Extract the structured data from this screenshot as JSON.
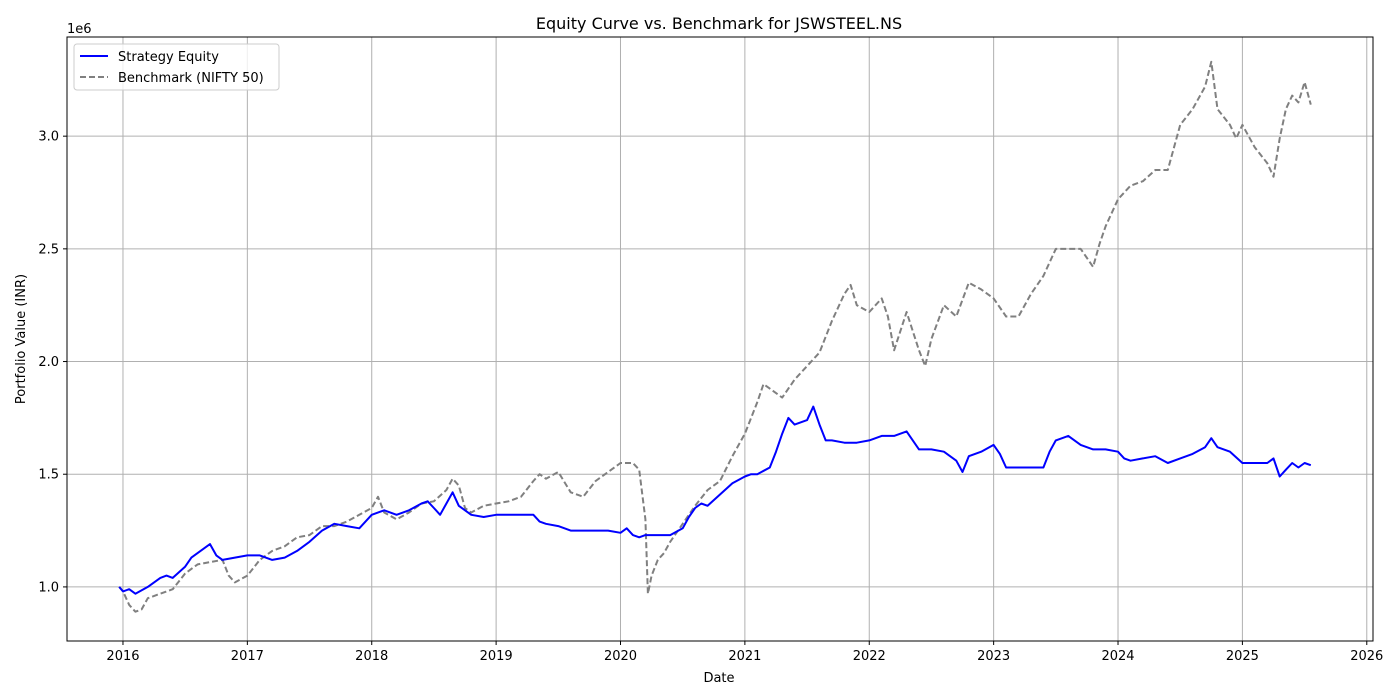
{
  "chart_data": {
    "type": "line",
    "title": "Equity Curve vs. Benchmark for JSWSTEEL.NS",
    "xlabel": "Date",
    "ylabel": "Portfolio Value (INR)",
    "y_offset_text": "1e6",
    "xlim": [
      2015.55,
      2026.05
    ],
    "ylim": [
      0.76,
      3.44
    ],
    "x_ticks": [
      2016,
      2017,
      2018,
      2019,
      2020,
      2021,
      2022,
      2023,
      2024,
      2025,
      2026
    ],
    "x_tick_labels": [
      "2016",
      "2017",
      "2018",
      "2019",
      "2020",
      "2021",
      "2022",
      "2023",
      "2024",
      "2025",
      "2026"
    ],
    "y_ticks": [
      1.0,
      1.5,
      2.0,
      2.5,
      3.0
    ],
    "y_tick_labels": [
      "1.0",
      "1.5",
      "2.0",
      "2.5",
      "3.0"
    ],
    "grid": true,
    "legend_position": "top-left",
    "series": [
      {
        "name": "Strategy Equity",
        "color": "#0000ff",
        "style": "solid",
        "x": [
          2015.97,
          2016.0,
          2016.05,
          2016.1,
          2016.2,
          2016.3,
          2016.35,
          2016.4,
          2016.5,
          2016.55,
          2016.6,
          2016.7,
          2016.75,
          2016.8,
          2016.9,
          2017.0,
          2017.1,
          2017.2,
          2017.3,
          2017.4,
          2017.5,
          2017.6,
          2017.7,
          2017.8,
          2017.9,
          2018.0,
          2018.1,
          2018.2,
          2018.3,
          2018.4,
          2018.45,
          2018.5,
          2018.55,
          2018.6,
          2018.65,
          2018.7,
          2018.8,
          2018.9,
          2019.0,
          2019.1,
          2019.2,
          2019.3,
          2019.35,
          2019.4,
          2019.5,
          2019.6,
          2019.7,
          2019.8,
          2019.9,
          2020.0,
          2020.05,
          2020.1,
          2020.15,
          2020.2,
          2020.3,
          2020.4,
          2020.5,
          2020.55,
          2020.6,
          2020.65,
          2020.7,
          2020.8,
          2020.9,
          2021.0,
          2021.05,
          2021.1,
          2021.2,
          2021.25,
          2021.3,
          2021.35,
          2021.4,
          2021.5,
          2021.55,
          2021.6,
          2021.65,
          2021.7,
          2021.8,
          2021.9,
          2022.0,
          2022.1,
          2022.2,
          2022.3,
          2022.35,
          2022.4,
          2022.5,
          2022.6,
          2022.7,
          2022.75,
          2022.8,
          2022.85,
          2022.9,
          2023.0,
          2023.05,
          2023.1,
          2023.2,
          2023.3,
          2023.4,
          2023.45,
          2023.5,
          2023.6,
          2023.7,
          2023.8,
          2023.9,
          2024.0,
          2024.05,
          2024.1,
          2024.2,
          2024.3,
          2024.4,
          2024.5,
          2024.6,
          2024.7,
          2024.75,
          2024.8,
          2024.9,
          2025.0,
          2025.1,
          2025.2,
          2025.25,
          2025.3,
          2025.35,
          2025.4,
          2025.45,
          2025.5,
          2025.55
        ],
        "y": [
          1.0,
          0.98,
          0.99,
          0.97,
          1.0,
          1.04,
          1.05,
          1.04,
          1.09,
          1.13,
          1.15,
          1.19,
          1.14,
          1.12,
          1.13,
          1.14,
          1.14,
          1.12,
          1.13,
          1.16,
          1.2,
          1.25,
          1.28,
          1.27,
          1.26,
          1.32,
          1.34,
          1.32,
          1.34,
          1.37,
          1.38,
          1.35,
          1.32,
          1.37,
          1.42,
          1.36,
          1.32,
          1.31,
          1.32,
          1.32,
          1.32,
          1.32,
          1.29,
          1.28,
          1.27,
          1.25,
          1.25,
          1.25,
          1.25,
          1.24,
          1.26,
          1.23,
          1.22,
          1.23,
          1.23,
          1.23,
          1.26,
          1.31,
          1.35,
          1.37,
          1.36,
          1.41,
          1.46,
          1.49,
          1.5,
          1.5,
          1.53,
          1.6,
          1.68,
          1.75,
          1.72,
          1.74,
          1.8,
          1.72,
          1.65,
          1.65,
          1.64,
          1.64,
          1.65,
          1.67,
          1.67,
          1.69,
          1.65,
          1.61,
          1.61,
          1.6,
          1.56,
          1.51,
          1.58,
          1.59,
          1.6,
          1.63,
          1.59,
          1.53,
          1.53,
          1.53,
          1.53,
          1.6,
          1.65,
          1.67,
          1.63,
          1.61,
          1.61,
          1.6,
          1.57,
          1.56,
          1.57,
          1.58,
          1.55,
          1.57,
          1.59,
          1.62,
          1.66,
          1.62,
          1.6,
          1.55,
          1.55,
          1.55,
          1.57,
          1.49,
          1.52,
          1.55,
          1.53,
          1.55,
          1.54
        ]
      },
      {
        "name": "Benchmark (NIFTY 50)",
        "color": "#808080",
        "style": "dashed",
        "x": [
          2015.97,
          2016.0,
          2016.05,
          2016.1,
          2016.15,
          2016.2,
          2016.3,
          2016.4,
          2016.5,
          2016.6,
          2016.7,
          2016.8,
          2016.85,
          2016.9,
          2017.0,
          2017.1,
          2017.2,
          2017.3,
          2017.4,
          2017.5,
          2017.6,
          2017.7,
          2017.8,
          2017.9,
          2018.0,
          2018.05,
          2018.1,
          2018.2,
          2018.3,
          2018.4,
          2018.5,
          2018.6,
          2018.65,
          2018.7,
          2018.75,
          2018.8,
          2018.9,
          2019.0,
          2019.1,
          2019.2,
          2019.3,
          2019.35,
          2019.4,
          2019.5,
          2019.6,
          2019.7,
          2019.8,
          2019.9,
          2020.0,
          2020.1,
          2020.15,
          2020.2,
          2020.22,
          2020.25,
          2020.3,
          2020.35,
          2020.4,
          2020.5,
          2020.6,
          2020.7,
          2020.8,
          2020.9,
          2021.0,
          2021.1,
          2021.15,
          2021.2,
          2021.3,
          2021.4,
          2021.5,
          2021.6,
          2021.7,
          2021.8,
          2021.85,
          2021.9,
          2022.0,
          2022.1,
          2022.15,
          2022.2,
          2022.3,
          2022.4,
          2022.45,
          2022.5,
          2022.6,
          2022.7,
          2022.8,
          2022.9,
          2023.0,
          2023.1,
          2023.2,
          2023.3,
          2023.4,
          2023.5,
          2023.6,
          2023.7,
          2023.8,
          2023.85,
          2023.9,
          2024.0,
          2024.1,
          2024.2,
          2024.3,
          2024.4,
          2024.5,
          2024.6,
          2024.7,
          2024.75,
          2024.8,
          2024.9,
          2024.95,
          2025.0,
          2025.1,
          2025.2,
          2025.25,
          2025.3,
          2025.35,
          2025.4,
          2025.45,
          2025.5,
          2025.55
        ],
        "y": [
          1.0,
          0.98,
          0.92,
          0.89,
          0.9,
          0.95,
          0.97,
          0.99,
          1.06,
          1.1,
          1.11,
          1.12,
          1.05,
          1.02,
          1.05,
          1.12,
          1.16,
          1.18,
          1.22,
          1.23,
          1.27,
          1.27,
          1.29,
          1.32,
          1.35,
          1.4,
          1.33,
          1.3,
          1.33,
          1.37,
          1.38,
          1.43,
          1.48,
          1.45,
          1.35,
          1.33,
          1.36,
          1.37,
          1.38,
          1.4,
          1.47,
          1.5,
          1.48,
          1.51,
          1.42,
          1.4,
          1.47,
          1.51,
          1.55,
          1.55,
          1.52,
          1.3,
          0.97,
          1.05,
          1.12,
          1.15,
          1.2,
          1.28,
          1.36,
          1.43,
          1.47,
          1.58,
          1.68,
          1.82,
          1.9,
          1.88,
          1.84,
          1.92,
          1.98,
          2.04,
          2.18,
          2.3,
          2.34,
          2.25,
          2.22,
          2.28,
          2.2,
          2.05,
          2.22,
          2.05,
          1.98,
          2.1,
          2.25,
          2.2,
          2.35,
          2.32,
          2.28,
          2.2,
          2.2,
          2.3,
          2.38,
          2.5,
          2.5,
          2.5,
          2.42,
          2.52,
          2.6,
          2.72,
          2.78,
          2.8,
          2.85,
          2.85,
          3.05,
          3.12,
          3.22,
          3.33,
          3.12,
          3.05,
          2.99,
          3.05,
          2.95,
          2.88,
          2.82,
          2.99,
          3.12,
          3.18,
          3.15,
          3.24,
          3.14
        ]
      }
    ]
  }
}
